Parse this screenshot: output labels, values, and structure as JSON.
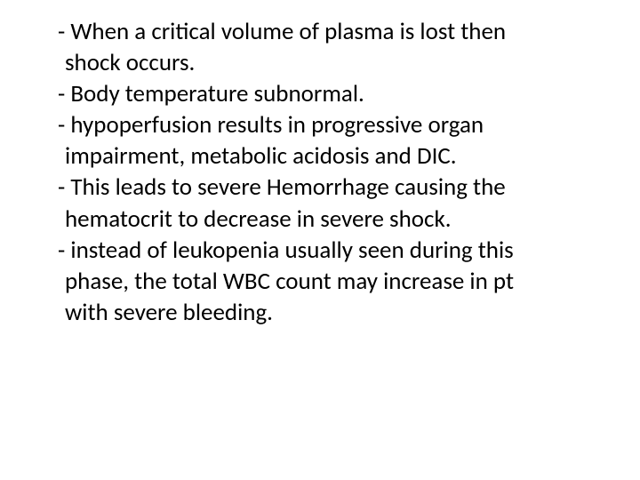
{
  "slide": {
    "lines": [
      "- When a critical volume of plasma is lost then",
      "  shock occurs.",
      "- Body temperature subnormal.",
      "- hypoperfusion results in progressive organ",
      "  impairment, metabolic acidosis and DIC.",
      "- This leads to severe Hemorrhage causing the",
      "  hematocrit to decrease in severe shock.",
      "- instead of leukopenia usually seen during this",
      "  phase, the total WBC count may increase in pt",
      "  with severe bleeding."
    ],
    "font_size": 27,
    "text_color": "#000000",
    "background_color": "#ffffff",
    "font_family": "Calibri, Arial, sans-serif",
    "line_height": 1.3
  }
}
